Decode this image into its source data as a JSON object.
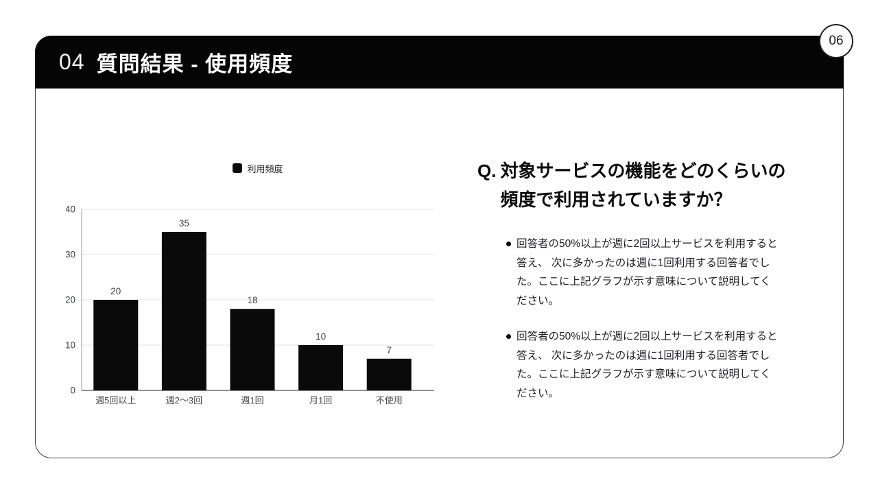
{
  "page_badge": {
    "number": "06"
  },
  "header": {
    "section_number": "04",
    "title": "質問結果 - 使用頻度"
  },
  "chart_data": {
    "type": "bar",
    "title": "",
    "legend": "利用頻度",
    "legend_position": "top",
    "categories": [
      "週5回以上",
      "週2〜3回",
      "週1回",
      "月1回",
      "不使用"
    ],
    "values": [
      20,
      35,
      18,
      10,
      7
    ],
    "xlabel": "",
    "ylabel": "",
    "ylim": [
      0,
      40
    ],
    "yticks": [
      0,
      10,
      20,
      30,
      40
    ],
    "grid": true,
    "colors": {
      "bar": "#0a0a0a",
      "grid": "#e3e3e3",
      "axis_bottom": "#6f6f6f",
      "axis_left": "#9a9a9a",
      "tick_label": "#3c4043",
      "value_label": "#424242",
      "category_label": "#424242"
    }
  },
  "question": {
    "prefix": "Q.",
    "text": "対象サービスの機能をどのくらいの\n頻度で利用されていますか？",
    "bullets": [
      "回答者の50%以上が週に2回以上サービスを利用すると\n答え、 次に多かったのは週に1回利用する回答者でし\nた。ここに上記グラフが示す意味について説明してく\nださい。",
      "回答者の50%以上が週に2回以上サービスを利用すると\n答え、 次に多かったのは週に1回利用する回答者でし\nた。ここに上記グラフが示す意味について説明してく\nださい。"
    ]
  }
}
